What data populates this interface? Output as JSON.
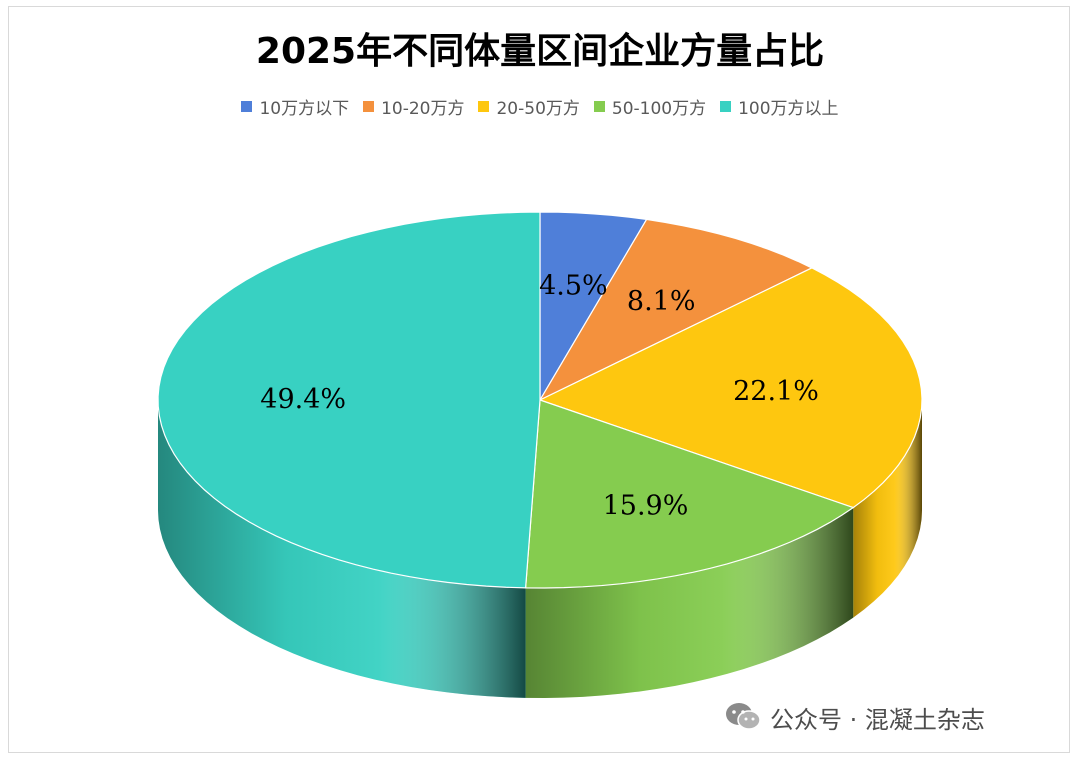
{
  "chart_data": {
    "type": "pie",
    "title": "2025年不同体量区间企业方量占比",
    "legend_position": "top",
    "categories": [
      "10万方以下",
      "10-20万方",
      "20-50万方",
      "50-100万方",
      "100万方以上"
    ],
    "values": [
      4.5,
      8.1,
      22.1,
      15.9,
      49.4
    ],
    "labels": [
      "4.5%",
      "8.1%",
      "22.1%",
      "15.9%",
      "49.4%"
    ],
    "colors": [
      "#4f7fd9",
      "#f4913d",
      "#fec70f",
      "#85cc4f",
      "#38d1c2"
    ]
  },
  "watermark": {
    "icon": "wechat-icon",
    "text": "公众号 · 混凝土杂志"
  }
}
